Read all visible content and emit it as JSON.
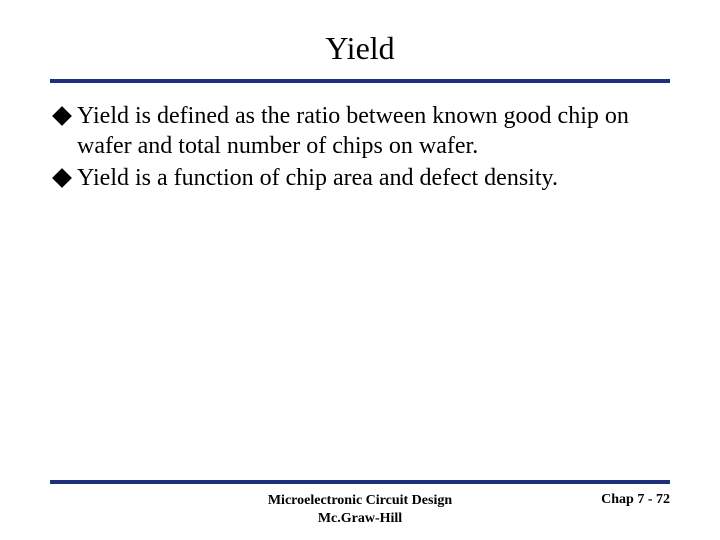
{
  "title": "Yield",
  "bullets": [
    "Yield is defined as the ratio between known good chip on wafer and total number of chips on wafer.",
    "Yield is a function of chip area and defect density."
  ],
  "footer": {
    "center_line1": "Microelectronic Circuit Design",
    "center_line2": "Mc.Graw-Hill",
    "right": "Chap 7 - 72"
  },
  "colors": {
    "rule": "#1f2f7f",
    "text": "#000000",
    "background": "#ffffff"
  },
  "typography": {
    "title_fontsize": 32,
    "body_fontsize": 24,
    "footer_fontsize": 14,
    "font_family": "Times New Roman"
  }
}
